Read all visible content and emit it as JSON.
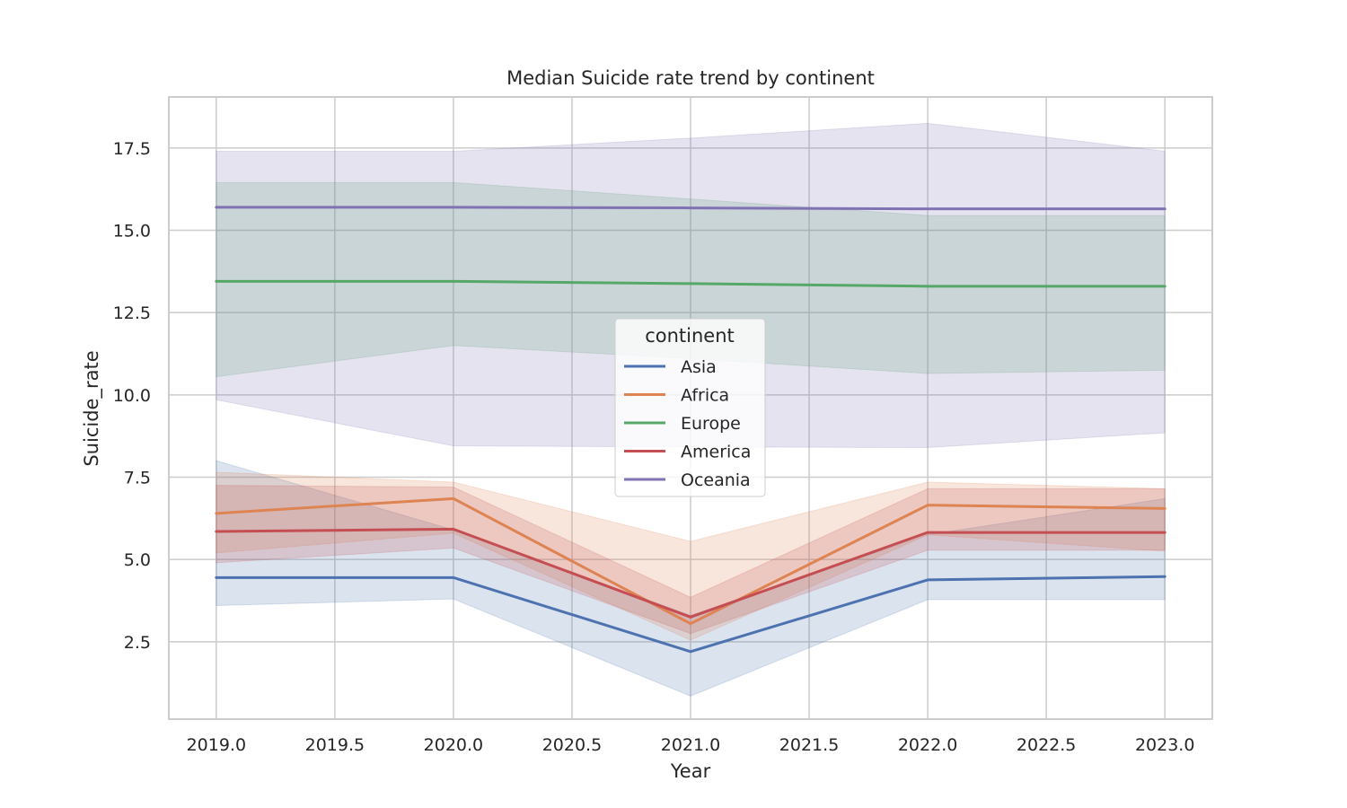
{
  "chart_data": {
    "type": "line",
    "title": "Median Suicide rate trend by continent",
    "xlabel": "Year",
    "ylabel": "Suicide_rate",
    "x": [
      2019,
      2020,
      2021,
      2022,
      2023
    ],
    "xlim": [
      2018.8,
      2023.2
    ],
    "ylim": [
      0.15,
      19.05
    ],
    "xticks": [
      "2019.0",
      "2019.5",
      "2020.0",
      "2020.5",
      "2021.0",
      "2021.5",
      "2022.0",
      "2022.5",
      "2023.0"
    ],
    "yticks": [
      "2.5",
      "5.0",
      "7.5",
      "10.0",
      "12.5",
      "15.0",
      "17.5"
    ],
    "grid": true,
    "legend": {
      "title": "continent",
      "placement": "center"
    },
    "series": [
      {
        "name": "Asia",
        "color": "#4c72b0",
        "values": [
          4.45,
          4.45,
          2.2,
          4.38,
          4.48
        ],
        "ci_low": [
          3.6,
          3.8,
          0.85,
          3.78,
          3.78
        ],
        "ci_high": [
          8.0,
          5.9,
          3.3,
          5.75,
          6.85
        ]
      },
      {
        "name": "Africa",
        "color": "#dd8452",
        "values": [
          6.4,
          6.85,
          3.05,
          6.65,
          6.55
        ],
        "ci_low": [
          5.2,
          5.8,
          2.55,
          5.75,
          5.25
        ],
        "ci_high": [
          7.65,
          7.35,
          5.55,
          7.35,
          7.15
        ]
      },
      {
        "name": "Europe",
        "color": "#55a868",
        "values": [
          13.45,
          13.45,
          13.38,
          13.3,
          13.3
        ],
        "ci_low": [
          10.55,
          11.5,
          11.1,
          10.65,
          10.75
        ],
        "ci_high": [
          16.45,
          16.45,
          15.95,
          15.45,
          15.45
        ]
      },
      {
        "name": "America",
        "color": "#c44e52",
        "values": [
          5.85,
          5.92,
          3.25,
          5.82,
          5.82
        ],
        "ci_low": [
          4.9,
          5.35,
          2.75,
          5.28,
          5.28
        ],
        "ci_high": [
          7.25,
          7.2,
          3.85,
          7.15,
          7.15
        ]
      },
      {
        "name": "Oceania",
        "color": "#8172b3",
        "values": [
          15.7,
          15.7,
          15.68,
          15.65,
          15.65
        ],
        "ci_low": [
          9.85,
          8.45,
          8.42,
          8.4,
          8.85
        ],
        "ci_high": [
          17.4,
          17.4,
          17.8,
          18.25,
          17.4
        ]
      }
    ]
  }
}
